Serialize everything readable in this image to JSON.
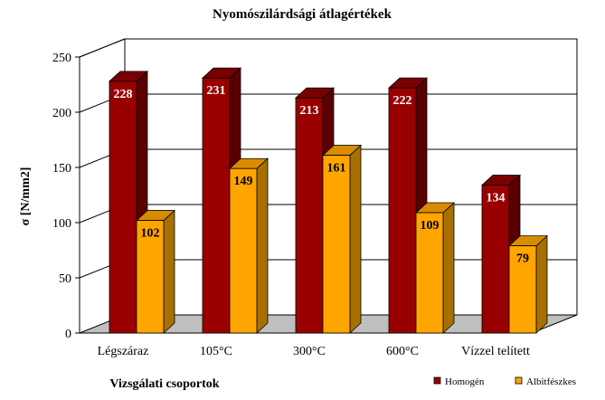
{
  "chart_data": {
    "type": "bar",
    "title": "Nyomószilárdsági átlagértékek",
    "xlabel": "Vizsgálati csoportok",
    "ylabel": "σ [N/mm2]",
    "categories": [
      "Légszáraz",
      "105°C",
      "300°C",
      "600°C",
      "Vízzel telített"
    ],
    "series": [
      {
        "name": "Homogén",
        "values": [
          228,
          231,
          213,
          222,
          134
        ]
      },
      {
        "name": "Albitfészkes",
        "values": [
          102,
          149,
          161,
          109,
          79
        ]
      }
    ],
    "ylim": [
      0,
      250
    ],
    "yticks": [
      0,
      50,
      100,
      150,
      200,
      250
    ],
    "grid": true,
    "legend_position": "bottom-right",
    "colors": {
      "Homogén": "#990000",
      "Albitfészkes": "#FFA500"
    }
  }
}
